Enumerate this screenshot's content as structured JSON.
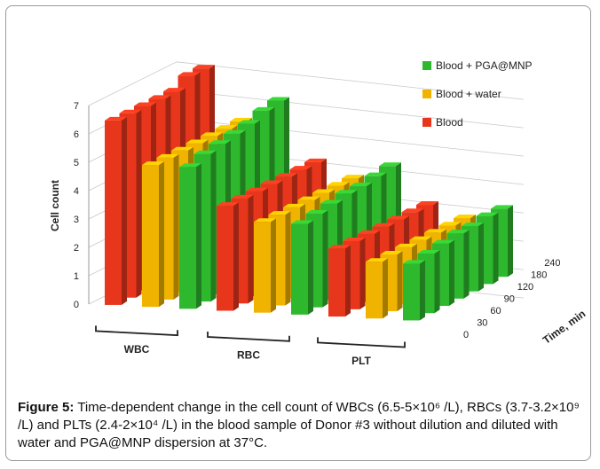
{
  "chart_data": {
    "type": "bar",
    "subtype": "3d-clustered",
    "ylabel": "Cell count",
    "zlabel": "Time, min",
    "ylim": [
      0,
      7
    ],
    "yticks": [
      0,
      1,
      2,
      3,
      4,
      5,
      6,
      7
    ],
    "time_ticks": [
      "0",
      "30",
      "60",
      "90",
      "120",
      "180",
      "240"
    ],
    "groups": [
      "WBC",
      "RBC",
      "PLT"
    ],
    "legend_position": "top-right",
    "grid": true,
    "series": [
      {
        "name": "Blood",
        "color": "#e8361c",
        "values": {
          "WBC": [
            6.5,
            6.5,
            6.5,
            6.5,
            6.5,
            6.8,
            6.8
          ],
          "RBC": [
            3.7,
            3.7,
            3.7,
            3.7,
            3.7,
            3.7,
            3.7
          ],
          "PLT": [
            2.4,
            2.4,
            2.4,
            2.4,
            2.4,
            2.4,
            2.4
          ]
        }
      },
      {
        "name": "Blood + water",
        "color": "#f0b400",
        "values": {
          "WBC": [
            5.0,
            5.0,
            5.0,
            5.0,
            5.0,
            5.0,
            5.0
          ],
          "RBC": [
            3.2,
            3.2,
            3.2,
            3.2,
            3.2,
            3.2,
            3.2
          ],
          "PLT": [
            2.0,
            2.0,
            2.0,
            2.0,
            2.0,
            2.0,
            2.0
          ]
        }
      },
      {
        "name": "Blood + PGA@MNP",
        "color": "#2eb82e",
        "values": {
          "WBC": [
            5.0,
            5.2,
            5.3,
            5.4,
            5.5,
            5.7,
            5.8
          ],
          "RBC": [
            3.2,
            3.3,
            3.4,
            3.5,
            3.5,
            3.6,
            3.7
          ],
          "PLT": [
            2.0,
            2.1,
            2.2,
            2.3,
            2.3,
            2.4,
            2.4
          ]
        }
      }
    ]
  },
  "caption": {
    "label": "Figure 5:",
    "text": " Time-dependent change in the cell count of WBCs (6.5-5×10⁶ /L), RBCs (3.7-3.2×10⁹ /L) and PLTs (2.4-2×10⁴ /L) in the blood sample of Donor #3 without dilution and diluted with water and PGA@MNP dispersion at 37°C."
  }
}
